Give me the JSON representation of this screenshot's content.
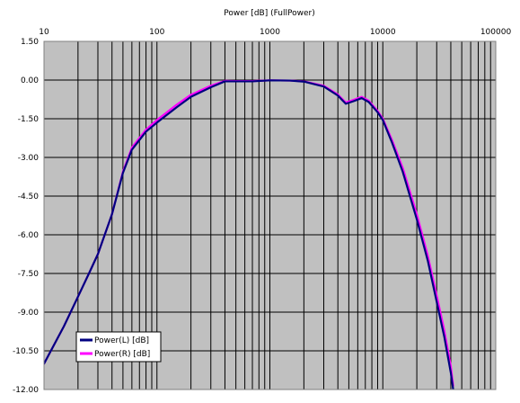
{
  "chart_data": {
    "type": "line",
    "title": "Power [dB] (FullPower)",
    "xscale": "log",
    "xlim": [
      10,
      100000
    ],
    "ylim": [
      -12,
      1.5
    ],
    "x_ticks": [
      "10",
      "100",
      "1000",
      "10000",
      "100000"
    ],
    "y_ticks": [
      "1.50",
      "0.00",
      "-1.50",
      "-3.00",
      "-4.50",
      "-6.00",
      "-7.50",
      "-9.00",
      "-10.50",
      "-12.00"
    ],
    "grid": true,
    "legend_position": "bottom-left",
    "plot_background": "#c0c0c0",
    "series": [
      {
        "name": "Power(L) [dB]",
        "color": "#000080",
        "x": [
          10,
          15,
          20,
          25,
          30,
          40,
          50,
          60,
          80,
          100,
          150,
          200,
          300,
          400,
          500,
          700,
          1000,
          1500,
          2000,
          3000,
          4000,
          4700,
          5500,
          6500,
          7500,
          9000,
          10000,
          12000,
          15000,
          20000,
          25000,
          30000,
          35000,
          40000,
          42000
        ],
        "y": [
          -11.0,
          -9.55,
          -8.4,
          -7.5,
          -6.75,
          -5.2,
          -3.6,
          -2.7,
          -2.0,
          -1.65,
          -1.05,
          -0.65,
          -0.28,
          -0.05,
          -0.05,
          -0.05,
          -0.01,
          -0.02,
          -0.06,
          -0.25,
          -0.6,
          -0.92,
          -0.82,
          -0.7,
          -0.85,
          -1.25,
          -1.55,
          -2.4,
          -3.55,
          -5.4,
          -7.0,
          -8.6,
          -9.95,
          -11.35,
          -12.0
        ]
      },
      {
        "name": "Power(R) [dB]",
        "color": "#ff00ff",
        "x": [
          10,
          15,
          20,
          25,
          30,
          40,
          50,
          60,
          80,
          100,
          150,
          200,
          300,
          400,
          500,
          700,
          1000,
          1500,
          2000,
          3000,
          4000,
          4700,
          5500,
          6500,
          7500,
          9000,
          10000,
          12000,
          15000,
          20000,
          25000,
          30000,
          35000,
          40000,
          42000
        ],
        "y": [
          -11.0,
          -9.55,
          -8.4,
          -7.5,
          -6.75,
          -5.2,
          -3.55,
          -2.62,
          -1.92,
          -1.55,
          -0.95,
          -0.57,
          -0.22,
          -0.03,
          -0.04,
          -0.04,
          -0.01,
          -0.02,
          -0.05,
          -0.22,
          -0.56,
          -0.87,
          -0.77,
          -0.65,
          -0.8,
          -1.2,
          -1.5,
          -2.3,
          -3.4,
          -5.2,
          -6.8,
          -8.35,
          -9.7,
          -11.1,
          -11.85
        ]
      }
    ]
  }
}
